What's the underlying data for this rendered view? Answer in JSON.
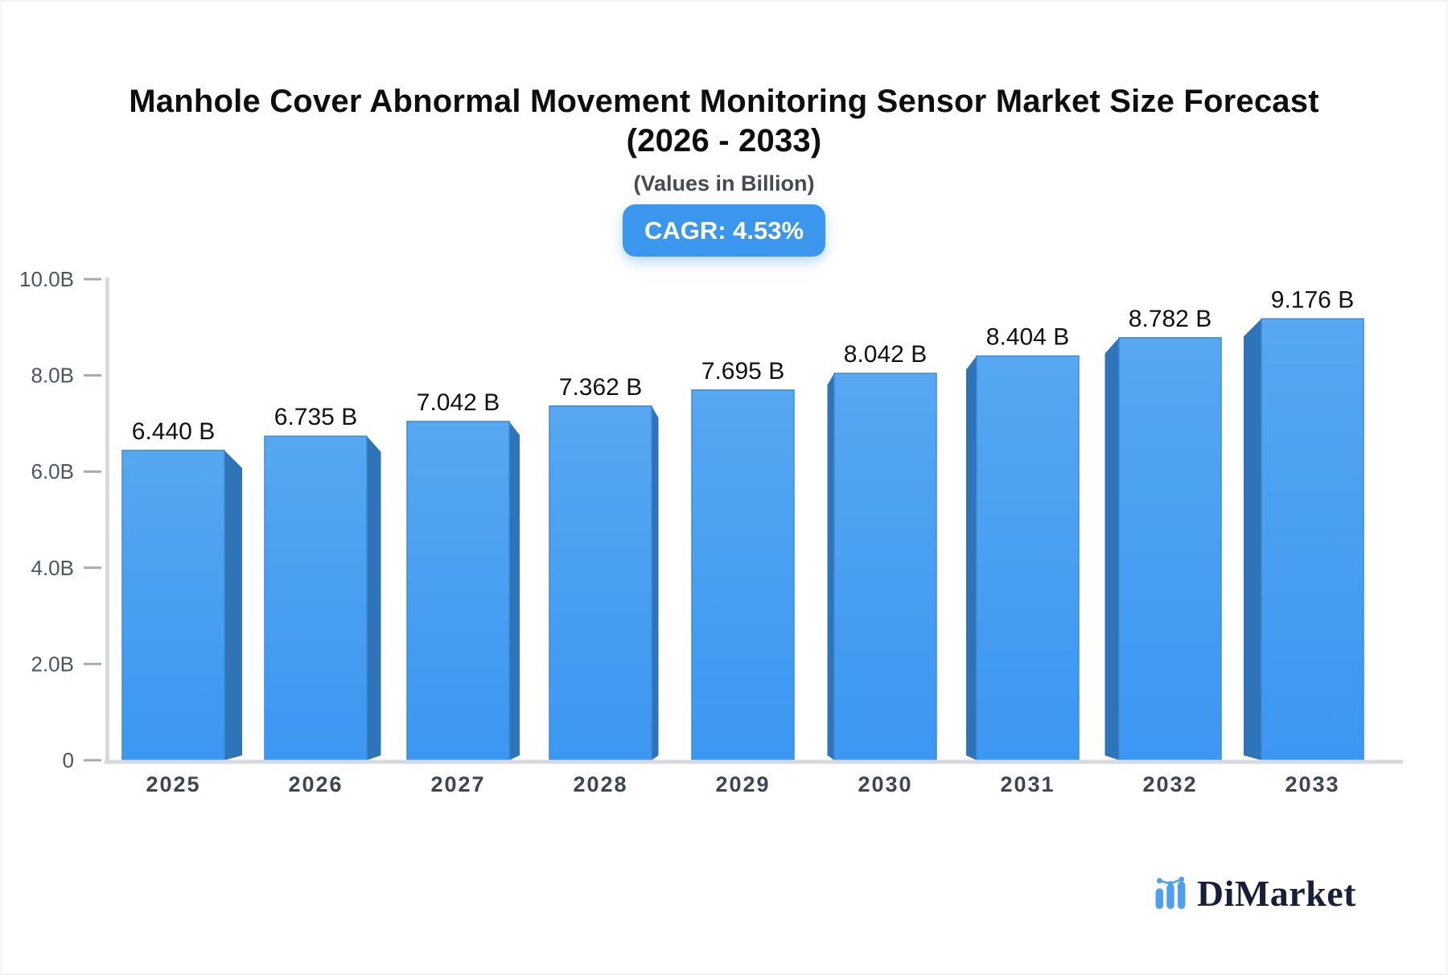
{
  "header": {
    "title_line1": "Manhole Cover Abnormal Movement Monitoring Sensor Market Size Forecast",
    "title_line2": "(2026 - 2033)",
    "subtitle": "(Values in Billion)",
    "cagr_badge": "CAGR: 4.53%",
    "badge_color": "#3B96ED"
  },
  "chart_data": {
    "type": "bar",
    "title": "Manhole Cover Abnormal Movement Monitoring Sensor Market Size Forecast (2026 - 2033)",
    "subtitle": "(Values in Billion)",
    "cagr_percent": 4.53,
    "unit": "Billion",
    "categories": [
      "2025",
      "2026",
      "2027",
      "2028",
      "2029",
      "2030",
      "2031",
      "2032",
      "2033"
    ],
    "values": [
      6.44,
      6.735,
      7.042,
      7.362,
      7.695,
      8.042,
      8.404,
      8.782,
      9.176
    ],
    "value_labels": [
      "6.440 B",
      "6.735 B",
      "7.042 B",
      "7.362 B",
      "7.695 B",
      "8.042 B",
      "8.404 B",
      "8.782 B",
      "9.176 B"
    ],
    "ylim": [
      0,
      10
    ],
    "yticks": [
      0,
      2,
      4,
      6,
      8,
      10
    ],
    "ytick_labels": [
      "0",
      "2.0B",
      "4.0B",
      "6.0B",
      "8.0B",
      "10.0B"
    ],
    "grid": false,
    "legend_position": "none",
    "style_3d": "center-vanishing-point extruded bars",
    "bar_color_top": "#57A7F1",
    "bar_color_bottom": "#3B97F2",
    "bar_edge_color": "#3E8BD4",
    "bar_side_color": "#2E74B9",
    "axis_color": "#D7D9DE",
    "tick_color": "#A6ABB3",
    "value_label_color": "#111111",
    "xtick_label_color": "#3B4554",
    "ytick_label_color": "#4A5562"
  },
  "logo": {
    "text": "DiMarket",
    "text_color": "#16203A",
    "icon_color": "#4DA0F0"
  }
}
